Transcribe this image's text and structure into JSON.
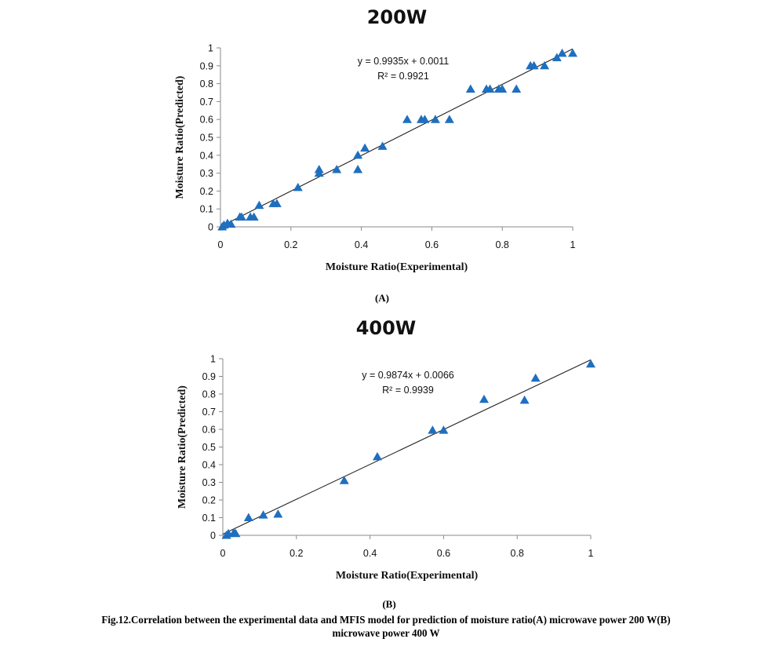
{
  "figure": {
    "caption_line1": "Fig.12.Correlation between the experimental data and MFIS model for prediction of moisture ratio(A) microwave power 200 W(B)",
    "caption_line2": "microwave power 400 W",
    "marker_color": "#1f6fbf",
    "trendline_color": "#222222",
    "axis_color": "#8a8a8a"
  },
  "chart_data": [
    {
      "type": "scatter",
      "panel_label": "(A)",
      "title": "200W",
      "xlabel": "Moisture Ratio(Experimental)",
      "ylabel": "Moisture Ratio(Predicted)",
      "xlim": [
        0,
        1
      ],
      "ylim": [
        0,
        1
      ],
      "x_ticks": [
        "0",
        "0.2",
        "0.4",
        "0.6",
        "0.8",
        "1"
      ],
      "y_ticks": [
        "0",
        "0.1",
        "0.2",
        "0.3",
        "0.4",
        "0.5",
        "0.6",
        "0.7",
        "0.8",
        "0.9",
        "1"
      ],
      "grid": false,
      "marker": "triangle",
      "trendline": {
        "slope": 0.9935,
        "intercept": 0.0011,
        "equation": "y = 0.9935x + 0.0011",
        "r2_label": "R² = 0.9921"
      },
      "points": [
        [
          0.005,
          0.0
        ],
        [
          0.01,
          0.01
        ],
        [
          0.02,
          0.02
        ],
        [
          0.03,
          0.015
        ],
        [
          0.055,
          0.055
        ],
        [
          0.06,
          0.055
        ],
        [
          0.085,
          0.055
        ],
        [
          0.095,
          0.055
        ],
        [
          0.11,
          0.12
        ],
        [
          0.15,
          0.13
        ],
        [
          0.16,
          0.13
        ],
        [
          0.22,
          0.22
        ],
        [
          0.28,
          0.32
        ],
        [
          0.28,
          0.3
        ],
        [
          0.33,
          0.32
        ],
        [
          0.39,
          0.32
        ],
        [
          0.39,
          0.4
        ],
        [
          0.41,
          0.44
        ],
        [
          0.46,
          0.45
        ],
        [
          0.53,
          0.6
        ],
        [
          0.57,
          0.6
        ],
        [
          0.58,
          0.6
        ],
        [
          0.61,
          0.6
        ],
        [
          0.65,
          0.6
        ],
        [
          0.71,
          0.77
        ],
        [
          0.755,
          0.77
        ],
        [
          0.765,
          0.77
        ],
        [
          0.79,
          0.77
        ],
        [
          0.8,
          0.77
        ],
        [
          0.84,
          0.77
        ],
        [
          0.88,
          0.9
        ],
        [
          0.89,
          0.9
        ],
        [
          0.92,
          0.9
        ],
        [
          0.955,
          0.945
        ],
        [
          0.97,
          0.97
        ],
        [
          1.0,
          0.97
        ]
      ]
    },
    {
      "type": "scatter",
      "panel_label": "(B)",
      "title": "400W",
      "xlabel": "Moisture Ratio(Experimental)",
      "ylabel": "Moisture Ratio(Predicted)",
      "xlim": [
        0,
        1
      ],
      "ylim": [
        0,
        1
      ],
      "x_ticks": [
        "0",
        "0.2",
        "0.4",
        "0.6",
        "0.8",
        "1"
      ],
      "y_ticks": [
        "0",
        "0.1",
        "0.2",
        "0.3",
        "0.4",
        "0.5",
        "0.6",
        "0.7",
        "0.8",
        "0.9",
        "1"
      ],
      "grid": false,
      "marker": "triangle",
      "trendline": {
        "slope": 0.9874,
        "intercept": 0.0066,
        "equation": "y = 0.9874x + 0.0066",
        "r2_label": "R² = 0.9939"
      },
      "points": [
        [
          0.01,
          0.0
        ],
        [
          0.015,
          0.01
        ],
        [
          0.03,
          0.015
        ],
        [
          0.035,
          0.01
        ],
        [
          0.07,
          0.1
        ],
        [
          0.11,
          0.115
        ],
        [
          0.15,
          0.12
        ],
        [
          0.33,
          0.31
        ],
        [
          0.42,
          0.445
        ],
        [
          0.57,
          0.595
        ],
        [
          0.6,
          0.595
        ],
        [
          0.71,
          0.77
        ],
        [
          0.82,
          0.765
        ],
        [
          0.85,
          0.89
        ],
        [
          1.0,
          0.97
        ]
      ]
    }
  ]
}
